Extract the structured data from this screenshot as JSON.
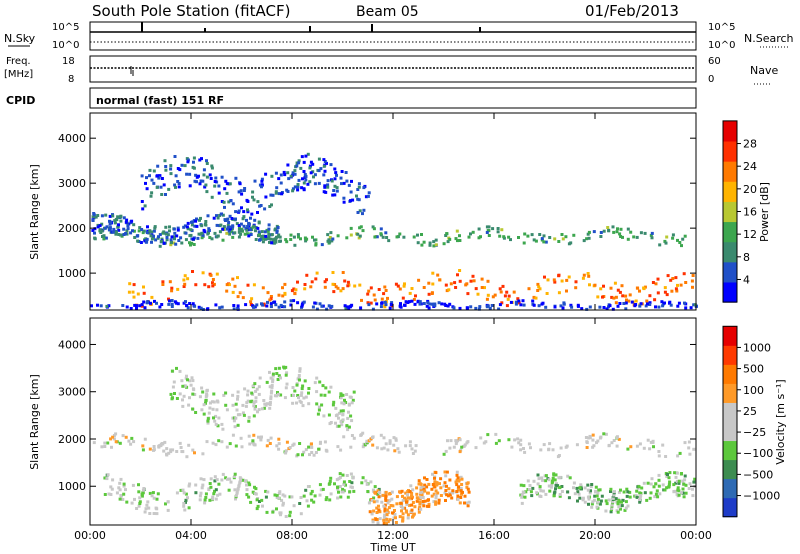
{
  "header": {
    "station": "South Pole Station (fitACF)",
    "beam": "Beam 05",
    "date": "01/Feb/2013"
  },
  "top_panels": {
    "nsky": {
      "label": "N.Sky",
      "ticks": [
        "10^5",
        "10^0"
      ]
    },
    "nsearch": {
      "label": "N.Search",
      "ticks": [
        "10^5",
        "10^0"
      ]
    },
    "freq": {
      "label_line1": "Freq.",
      "label_line2": "[MHz]",
      "ticks": [
        "18",
        "8"
      ]
    },
    "nave": {
      "label": "Nave",
      "ticks": [
        "60",
        "0"
      ]
    },
    "cpid": {
      "label": "CPID",
      "mode": "normal (fast) 151 RF"
    }
  },
  "colors": {
    "power_scale": [
      "#0000ff",
      "#2050c8",
      "#3a8a6e",
      "#3ca64e",
      "#b8c832",
      "#ffb400",
      "#ff7a00",
      "#ff3000",
      "#e60000"
    ],
    "velocity_scale": [
      "#1e3cc8",
      "#2e6ab4",
      "#3c8c50",
      "#5cc83c",
      "#c8c8c8",
      "#c8c8c8",
      "#ff9a28",
      "#ff7a00",
      "#ff3a00",
      "#e60000"
    ]
  },
  "chart_data": [
    {
      "type": "heatmap",
      "panel": "power",
      "ylabel": "Slant Range [km]",
      "xlabel": "",
      "x_ticks": [
        "00:00",
        "04:00",
        "08:00",
        "12:00",
        "16:00",
        "20:00",
        "00:00"
      ],
      "y_ticks": [
        "1000",
        "2000",
        "3000",
        "4000"
      ],
      "xlim": [
        0,
        24
      ],
      "ylim": [
        180,
        4560
      ],
      "colorbar": {
        "label": "Power [dB]",
        "ticks": [
          "4",
          "8",
          "12",
          "16",
          "20",
          "24",
          "28"
        ],
        "range": [
          0,
          30
        ]
      },
      "bands": [
        {
          "x_start": 0.1,
          "x_end": 23.9,
          "y_center": 1850,
          "y_width": 260,
          "value": 10
        },
        {
          "x_start": 0.0,
          "x_end": 7.5,
          "y_center": 2000,
          "y_width": 450,
          "value": 6
        },
        {
          "x_start": 1.5,
          "x_end": 23.9,
          "y_center": 700,
          "y_width": 500,
          "value": 22
        },
        {
          "x_start": 2.0,
          "x_end": 11.0,
          "y_center": 3000,
          "y_width": 800,
          "value": 5
        },
        {
          "x_start": 0.0,
          "x_end": 24.0,
          "y_center": 300,
          "y_width": 150,
          "value": 3
        }
      ]
    },
    {
      "type": "heatmap",
      "panel": "velocity",
      "ylabel": "Slant Range [km]",
      "xlabel": "Time UT",
      "x_ticks": [
        "00:00",
        "04:00",
        "08:00",
        "12:00",
        "16:00",
        "20:00",
        "00:00"
      ],
      "y_ticks": [
        "1000",
        "2000",
        "3000",
        "4000"
      ],
      "xlim": [
        0,
        24
      ],
      "ylim": [
        180,
        4560
      ],
      "colorbar": {
        "label": "Velocity [m s⁻¹]",
        "ticks": [
          "1000",
          "500",
          "100",
          "25",
          "−25",
          "−100",
          "−500",
          "−1000"
        ],
        "range": [
          -1200,
          1200
        ]
      },
      "bands": [
        {
          "x_start": 0.0,
          "x_end": 23.9,
          "y_center": 1900,
          "y_width": 300,
          "value": 0
        },
        {
          "x_start": 0.5,
          "x_end": 11.5,
          "y_center": 850,
          "y_width": 550,
          "value": -200
        },
        {
          "x_start": 11.0,
          "x_end": 15.0,
          "y_center": 800,
          "y_width": 700,
          "value": 400
        },
        {
          "x_start": 17.0,
          "x_end": 23.9,
          "y_center": 900,
          "y_width": 500,
          "value": -300
        },
        {
          "x_start": 3.0,
          "x_end": 10.5,
          "y_center": 2900,
          "y_width": 800,
          "value": -150
        }
      ]
    }
  ]
}
